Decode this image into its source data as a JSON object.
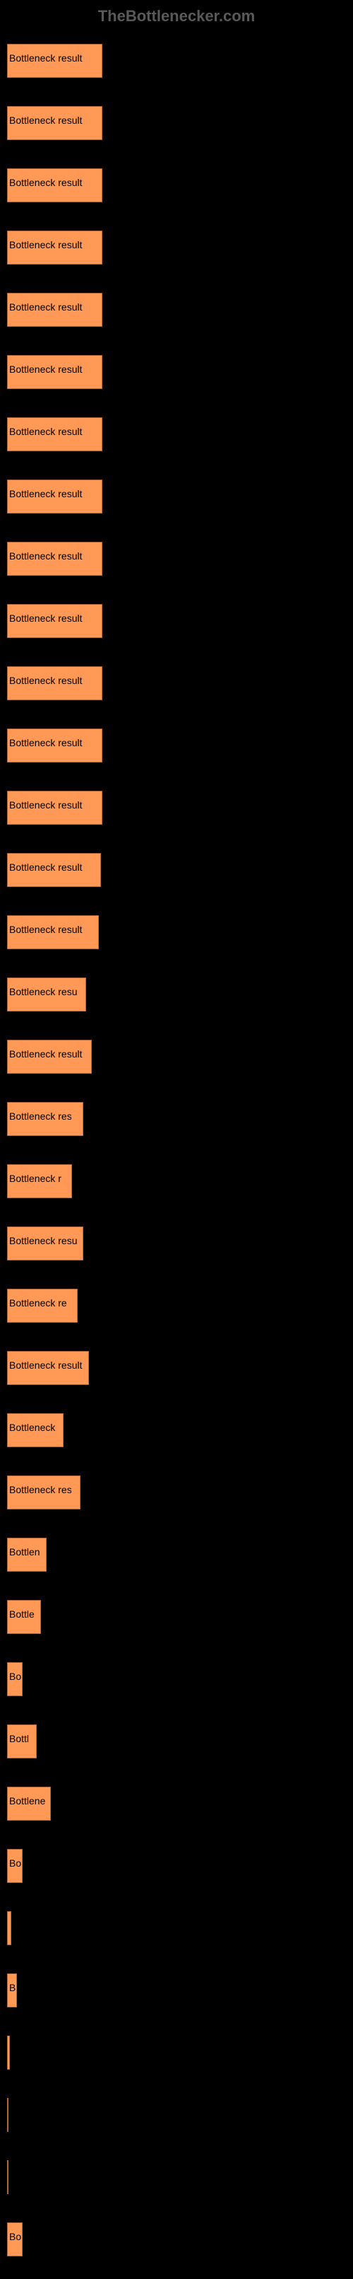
{
  "watermark": "TheBottlenecker.com",
  "chart": {
    "type": "bar",
    "background_color": "#000000",
    "bar_color": "#ff9955",
    "bar_border_color": "#b36633",
    "label_color": "#000000",
    "label_fontsize": 14,
    "max_width": 480,
    "bars": [
      {
        "label": "Bottleneck result",
        "width": 135
      },
      {
        "label": "Bottleneck result",
        "width": 135
      },
      {
        "label": "Bottleneck result",
        "width": 135
      },
      {
        "label": "Bottleneck result",
        "width": 135
      },
      {
        "label": "Bottleneck result",
        "width": 135
      },
      {
        "label": "Bottleneck result",
        "width": 135
      },
      {
        "label": "Bottleneck result",
        "width": 135
      },
      {
        "label": "Bottleneck result",
        "width": 135
      },
      {
        "label": "Bottleneck result",
        "width": 135
      },
      {
        "label": "Bottleneck result",
        "width": 135
      },
      {
        "label": "Bottleneck result",
        "width": 135
      },
      {
        "label": "Bottleneck result",
        "width": 135
      },
      {
        "label": "Bottleneck result",
        "width": 135
      },
      {
        "label": "Bottleneck result",
        "width": 133
      },
      {
        "label": "Bottleneck result",
        "width": 130
      },
      {
        "label": "Bottleneck resu",
        "width": 112
      },
      {
        "label": "Bottleneck result",
        "width": 120
      },
      {
        "label": "Bottleneck res",
        "width": 108
      },
      {
        "label": "Bottleneck r",
        "width": 92
      },
      {
        "label": "Bottleneck resu",
        "width": 108
      },
      {
        "label": "Bottleneck re",
        "width": 100
      },
      {
        "label": "Bottleneck result",
        "width": 116
      },
      {
        "label": "Bottleneck",
        "width": 80
      },
      {
        "label": "Bottleneck res",
        "width": 104
      },
      {
        "label": "Bottlen",
        "width": 56
      },
      {
        "label": "Bottle",
        "width": 48
      },
      {
        "label": "Bo",
        "width": 22
      },
      {
        "label": "Bottl",
        "width": 42
      },
      {
        "label": "Bottlene",
        "width": 62
      },
      {
        "label": "Bo",
        "width": 22
      },
      {
        "label": "",
        "width": 6
      },
      {
        "label": "B",
        "width": 14
      },
      {
        "label": "",
        "width": 4
      },
      {
        "label": "",
        "width": 2
      },
      {
        "label": "",
        "width": 0
      },
      {
        "label": "Bo",
        "width": 22
      }
    ]
  }
}
